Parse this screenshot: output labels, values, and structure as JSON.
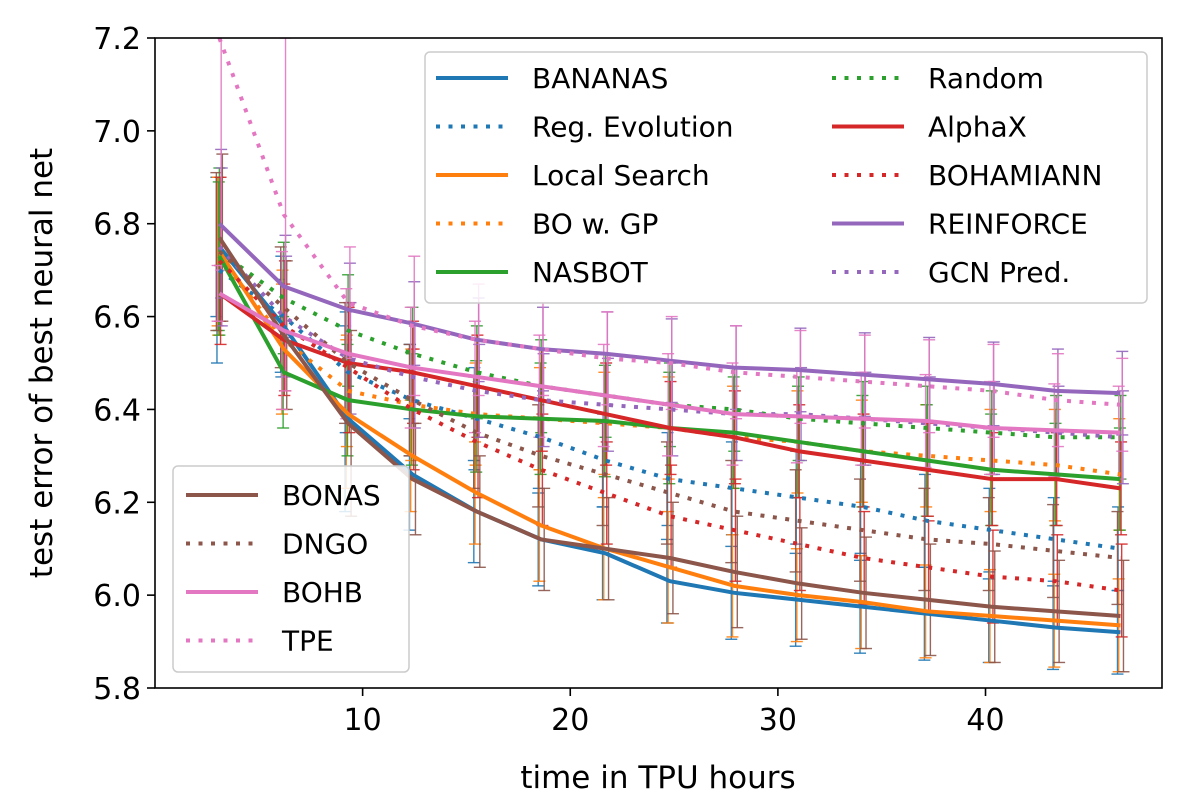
{
  "chart_data": {
    "type": "line",
    "title": "",
    "xlabel": "time in TPU hours",
    "ylabel": "test error of best neural net",
    "xlim": [
      0,
      48.5
    ],
    "ylim": [
      5.8,
      7.2
    ],
    "xticks": [
      10,
      20,
      30,
      40
    ],
    "yticks": [
      5.8,
      6.0,
      6.2,
      6.4,
      6.6,
      6.8,
      7.0,
      7.2
    ],
    "legend_main_location": "upper-right",
    "legend_secondary_location": "lower-left",
    "x": [
      3.1,
      6.2,
      9.3,
      12.4,
      15.5,
      18.6,
      21.7,
      24.8,
      27.9,
      31.0,
      34.1,
      37.2,
      40.3,
      43.4,
      46.5
    ],
    "series": [
      {
        "name": "BANANAS",
        "color": "#1f77b4",
        "style": "solid",
        "legend": "main",
        "values": [
          6.75,
          6.58,
          6.38,
          6.26,
          6.18,
          6.12,
          6.09,
          6.03,
          6.005,
          5.99,
          5.975,
          5.96,
          5.945,
          5.93,
          5.92
        ],
        "err": [
          0.15,
          0.1,
          0.2,
          0.12,
          0.11,
          0.1,
          0.1,
          0.09,
          0.1,
          0.1,
          0.1,
          0.1,
          0.09,
          0.09,
          0.09
        ]
      },
      {
        "name": "Reg. Evolution",
        "color": "#1f77b4",
        "style": "dotted",
        "legend": "main",
        "values": [
          6.7,
          6.6,
          6.48,
          6.42,
          6.38,
          6.34,
          6.29,
          6.25,
          6.23,
          6.21,
          6.19,
          6.16,
          6.14,
          6.12,
          6.1
        ],
        "err": [
          0.2,
          0.13,
          0.13,
          0.12,
          0.11,
          0.11,
          0.1,
          0.1,
          0.1,
          0.1,
          0.1,
          0.1,
          0.09,
          0.09,
          0.09
        ]
      },
      {
        "name": "Local Search",
        "color": "#ff7f0e",
        "style": "solid",
        "legend": "main",
        "values": [
          6.74,
          6.53,
          6.39,
          6.3,
          6.22,
          6.15,
          6.1,
          6.06,
          6.02,
          6.0,
          5.985,
          5.965,
          5.955,
          5.945,
          5.935
        ],
        "err": [
          0.16,
          0.14,
          0.16,
          0.12,
          0.11,
          0.12,
          0.11,
          0.12,
          0.11,
          0.1,
          0.1,
          0.1,
          0.1,
          0.1,
          0.1
        ]
      },
      {
        "name": "BO w. GP",
        "color": "#ff7f0e",
        "style": "dotted",
        "legend": "main",
        "values": [
          6.73,
          6.55,
          6.44,
          6.41,
          6.39,
          6.38,
          6.37,
          6.36,
          6.34,
          6.33,
          6.31,
          6.3,
          6.29,
          6.28,
          6.26
        ],
        "err": [
          0.17,
          0.15,
          0.12,
          0.12,
          0.11,
          0.11,
          0.11,
          0.11,
          0.11,
          0.11,
          0.11,
          0.11,
          0.11,
          0.12,
          0.12
        ]
      },
      {
        "name": "NASBOT",
        "color": "#2ca02c",
        "style": "solid",
        "legend": "main",
        "values": [
          6.73,
          6.48,
          6.42,
          6.4,
          6.385,
          6.38,
          6.375,
          6.36,
          6.35,
          6.33,
          6.31,
          6.29,
          6.27,
          6.26,
          6.25
        ],
        "err": [
          0.16,
          0.12,
          0.12,
          0.12,
          0.12,
          0.12,
          0.12,
          0.12,
          0.12,
          0.12,
          0.12,
          0.12,
          0.12,
          0.11,
          0.11
        ]
      },
      {
        "name": "Random",
        "color": "#2ca02c",
        "style": "dotted",
        "legend": "main",
        "values": [
          6.74,
          6.64,
          6.57,
          6.52,
          6.48,
          6.45,
          6.43,
          6.41,
          6.4,
          6.38,
          6.37,
          6.36,
          6.35,
          6.34,
          6.34
        ],
        "err": [
          0.18,
          0.12,
          0.12,
          0.1,
          0.1,
          0.1,
          0.09,
          0.09,
          0.09,
          0.09,
          0.09,
          0.09,
          0.09,
          0.09,
          0.09
        ]
      },
      {
        "name": "AlphaX",
        "color": "#d62728",
        "style": "solid",
        "legend": "main",
        "values": [
          6.65,
          6.55,
          6.5,
          6.48,
          6.45,
          6.42,
          6.39,
          6.36,
          6.34,
          6.31,
          6.29,
          6.27,
          6.25,
          6.25,
          6.23
        ],
        "err": [
          0.06,
          0.12,
          0.12,
          0.11,
          0.11,
          0.11,
          0.11,
          0.1,
          0.1,
          0.1,
          0.1,
          0.1,
          0.1,
          0.1,
          0.1
        ]
      },
      {
        "name": "BOHAMIANN",
        "color": "#d62728",
        "style": "dotted",
        "legend": "main",
        "values": [
          6.72,
          6.58,
          6.49,
          6.4,
          6.33,
          6.27,
          6.22,
          6.17,
          6.14,
          6.11,
          6.08,
          6.06,
          6.04,
          6.03,
          6.01
        ],
        "err": [
          0.18,
          0.14,
          0.14,
          0.13,
          0.12,
          0.12,
          0.11,
          0.11,
          0.11,
          0.1,
          0.1,
          0.1,
          0.1,
          0.1,
          0.1
        ]
      },
      {
        "name": "REINFORCE",
        "color": "#9467bd",
        "style": "solid",
        "legend": "main",
        "values": [
          6.8,
          6.665,
          6.615,
          6.585,
          6.55,
          6.53,
          6.52,
          6.505,
          6.49,
          6.485,
          6.475,
          6.465,
          6.455,
          6.44,
          6.435
        ],
        "err": [
          0.16,
          0.11,
          0.1,
          0.09,
          0.09,
          0.09,
          0.09,
          0.09,
          0.09,
          0.09,
          0.09,
          0.09,
          0.09,
          0.09,
          0.09
        ]
      },
      {
        "name": "GCN Pred.",
        "color": "#9467bd",
        "style": "dotted",
        "legend": "main",
        "values": [
          6.75,
          6.6,
          6.51,
          6.47,
          6.44,
          6.42,
          6.41,
          6.4,
          6.39,
          6.39,
          6.38,
          6.37,
          6.36,
          6.35,
          6.34
        ],
        "err": [
          0.17,
          0.13,
          0.12,
          0.11,
          0.1,
          0.1,
          0.1,
          0.1,
          0.1,
          0.1,
          0.1,
          0.1,
          0.1,
          0.1,
          0.1
        ]
      },
      {
        "name": "BONAS",
        "color": "#8c564b",
        "style": "solid",
        "legend": "secondary",
        "values": [
          6.77,
          6.56,
          6.37,
          6.25,
          6.18,
          6.12,
          6.1,
          6.08,
          6.05,
          6.025,
          6.005,
          5.99,
          5.975,
          5.965,
          5.955
        ],
        "err": [
          0.18,
          0.16,
          0.2,
          0.12,
          0.12,
          0.11,
          0.11,
          0.12,
          0.12,
          0.12,
          0.12,
          0.12,
          0.12,
          0.11,
          0.12
        ]
      },
      {
        "name": "DNGO",
        "color": "#8c564b",
        "style": "dotted",
        "legend": "secondary",
        "values": [
          6.74,
          6.62,
          6.5,
          6.42,
          6.35,
          6.3,
          6.26,
          6.22,
          6.18,
          6.16,
          6.14,
          6.12,
          6.11,
          6.095,
          6.08
        ],
        "err": [
          0.17,
          0.13,
          0.13,
          0.12,
          0.12,
          0.11,
          0.11,
          0.11,
          0.11,
          0.11,
          0.11,
          0.11,
          0.1,
          0.1,
          0.1
        ]
      },
      {
        "name": "BOHB",
        "color": "#e377c2",
        "style": "solid",
        "legend": "secondary",
        "values": [
          6.65,
          6.57,
          6.52,
          6.49,
          6.47,
          6.45,
          6.43,
          6.41,
          6.39,
          6.385,
          6.38,
          6.375,
          6.36,
          6.355,
          6.35
        ],
        "err": [
          0.06,
          0.17,
          0.14,
          0.13,
          0.12,
          0.11,
          0.11,
          0.11,
          0.11,
          0.1,
          0.1,
          0.1,
          0.1,
          0.1,
          0.1
        ]
      },
      {
        "name": "TPE",
        "color": "#e377c2",
        "style": "dotted",
        "legend": "secondary",
        "values": [
          7.2,
          6.82,
          6.63,
          6.58,
          6.55,
          6.53,
          6.51,
          6.5,
          6.48,
          6.47,
          6.46,
          6.45,
          6.44,
          6.42,
          6.41
        ],
        "err": [
          0.5,
          0.38,
          0.12,
          0.15,
          0.12,
          0.1,
          0.1,
          0.1,
          0.1,
          0.1,
          0.1,
          0.1,
          0.1,
          0.1,
          0.1
        ]
      }
    ]
  }
}
